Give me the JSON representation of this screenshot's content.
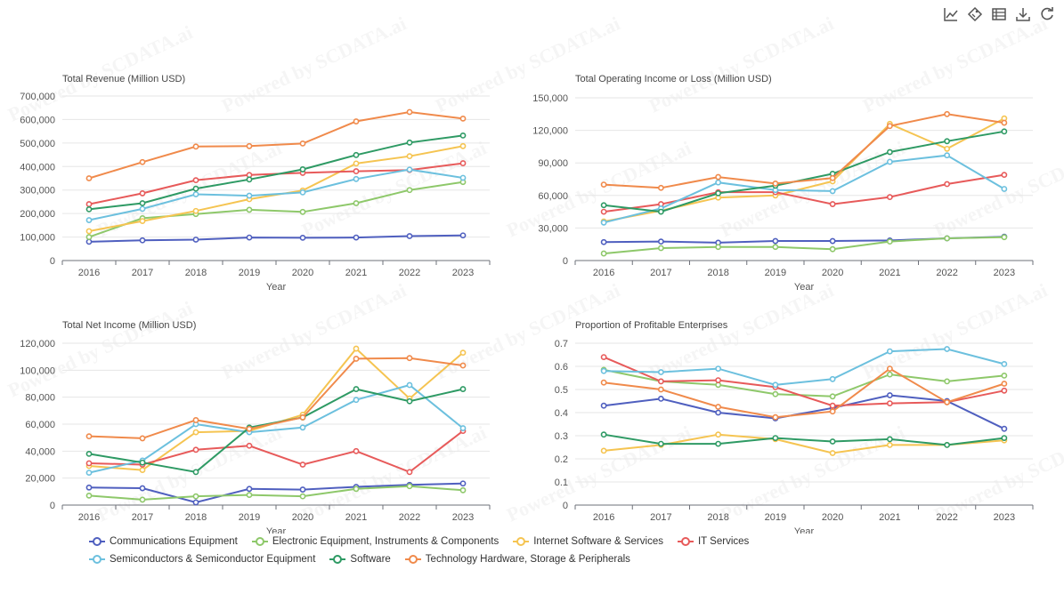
{
  "toolbox": {
    "icons": [
      "line-chart-icon",
      "bar-chart-icon",
      "data-view-icon",
      "download-icon",
      "restore-icon"
    ]
  },
  "watermark_text": "Powered by SCDATA.ai",
  "colors": {
    "Communications Equipment": "#4f5fbf",
    "Electronic Equipment, Instruments & Components": "#8ec86a",
    "Internet Software & Services": "#f5c451",
    "IT Services": "#e75a5a",
    "Semiconductors & Semiconductor Equipment": "#6cc0de",
    "Software": "#2e9a64",
    "Technology Hardware, Storage & Peripherals": "#f08a4b"
  },
  "legend": [
    "Communications Equipment",
    "Electronic Equipment, Instruments & Components",
    "Internet Software & Services",
    "IT Services",
    "Semiconductors & Semiconductor Equipment",
    "Software",
    "Technology Hardware, Storage & Peripherals"
  ],
  "chart_data": [
    {
      "type": "line",
      "title": "Total Revenue (Million USD)",
      "xlabel": "Year",
      "ylabel": "",
      "x": [
        "2016",
        "2017",
        "2018",
        "2019",
        "2020",
        "2021",
        "2022",
        "2023"
      ],
      "ylim": [
        0,
        700000
      ],
      "yticks": [
        0,
        100000,
        200000,
        300000,
        400000,
        500000,
        600000,
        700000
      ],
      "ytick_labels": [
        "0",
        "100,000",
        "200,000",
        "300,000",
        "400,000",
        "500,000",
        "600,000",
        "700,000"
      ],
      "grid": true,
      "series": [
        {
          "name": "Communications Equipment",
          "values": [
            80000,
            86000,
            89000,
            98000,
            97000,
            98000,
            104000,
            107000
          ]
        },
        {
          "name": "Electronic Equipment, Instruments & Components",
          "values": [
            100000,
            180000,
            198000,
            216000,
            207000,
            244000,
            300000,
            334000
          ]
        },
        {
          "name": "Internet Software & Services",
          "values": [
            125000,
            168000,
            211000,
            261000,
            298000,
            413000,
            444000,
            487000
          ]
        },
        {
          "name": "IT Services",
          "values": [
            240000,
            286000,
            342000,
            364000,
            373000,
            380000,
            385000,
            414000
          ]
        },
        {
          "name": "Semiconductors & Semiconductor Equipment",
          "values": [
            172000,
            220000,
            282000,
            276000,
            290000,
            347000,
            387000,
            352000
          ]
        },
        {
          "name": "Software",
          "values": [
            218000,
            244000,
            306000,
            345000,
            388000,
            449000,
            502000,
            532000
          ]
        },
        {
          "name": "Technology Hardware, Storage & Peripherals",
          "values": [
            350000,
            419000,
            485000,
            487000,
            498000,
            592000,
            632000,
            604000
          ]
        }
      ]
    },
    {
      "type": "line",
      "title": "Total Operating Income or Loss (Million USD)",
      "xlabel": "Year",
      "ylabel": "",
      "x": [
        "2016",
        "2017",
        "2018",
        "2019",
        "2020",
        "2021",
        "2022",
        "2023"
      ],
      "ylim": [
        0,
        150000
      ],
      "yticks": [
        0,
        30000,
        60000,
        90000,
        120000,
        150000
      ],
      "ytick_labels": [
        "0",
        "30,000",
        "60,000",
        "90,000",
        "120,000",
        "150,000"
      ],
      "grid": true,
      "series": [
        {
          "name": "Communications Equipment",
          "values": [
            17000,
            17500,
            16500,
            18000,
            18000,
            18500,
            20500,
            22000
          ]
        },
        {
          "name": "Electronic Equipment, Instruments & Components",
          "values": [
            6500,
            11500,
            12500,
            12500,
            10500,
            17500,
            20500,
            21500
          ]
        },
        {
          "name": "Internet Software & Services",
          "values": [
            36000,
            46000,
            58000,
            60000,
            73000,
            126000,
            103000,
            131000
          ]
        },
        {
          "name": "IT Services",
          "values": [
            45000,
            52000,
            63000,
            63000,
            52000,
            58500,
            70500,
            79000
          ]
        },
        {
          "name": "Semiconductors & Semiconductor Equipment",
          "values": [
            35000,
            48000,
            72000,
            65000,
            64000,
            91000,
            97000,
            66000
          ]
        },
        {
          "name": "Software",
          "values": [
            51000,
            45000,
            62000,
            69000,
            80000,
            100000,
            110000,
            119000
          ]
        },
        {
          "name": "Technology Hardware, Storage & Peripherals",
          "values": [
            70000,
            67000,
            77000,
            71000,
            76000,
            124000,
            135000,
            127000
          ]
        }
      ]
    },
    {
      "type": "line",
      "title": "Total Net Income (Million USD)",
      "xlabel": "Year",
      "ylabel": "",
      "x": [
        "2016",
        "2017",
        "2018",
        "2019",
        "2020",
        "2021",
        "2022",
        "2023"
      ],
      "ylim": [
        0,
        120000
      ],
      "yticks": [
        0,
        20000,
        40000,
        60000,
        80000,
        100000,
        120000
      ],
      "ytick_labels": [
        "0",
        "20,000",
        "40,000",
        "60,000",
        "80,000",
        "100,000",
        "120,000"
      ],
      "grid": true,
      "series": [
        {
          "name": "Communications Equipment",
          "values": [
            13000,
            12500,
            2000,
            12000,
            11500,
            13500,
            15000,
            16000
          ]
        },
        {
          "name": "Electronic Equipment, Instruments & Components",
          "values": [
            7000,
            4000,
            6500,
            7500,
            6500,
            12000,
            14000,
            11000
          ]
        },
        {
          "name": "Internet Software & Services",
          "values": [
            29000,
            26000,
            54000,
            55000,
            67000,
            116000,
            79000,
            113000
          ]
        },
        {
          "name": "IT Services",
          "values": [
            31000,
            30000,
            41000,
            44000,
            30000,
            40000,
            24500,
            55000
          ]
        },
        {
          "name": "Semiconductors & Semiconductor Equipment",
          "values": [
            24000,
            33000,
            60000,
            54000,
            57500,
            78000,
            89000,
            57000
          ]
        },
        {
          "name": "Software",
          "values": [
            38000,
            31500,
            24500,
            57500,
            65000,
            86000,
            77000,
            86000
          ]
        },
        {
          "name": "Technology Hardware, Storage & Peripherals",
          "values": [
            51000,
            49500,
            63000,
            56500,
            65000,
            108500,
            109000,
            103500
          ]
        }
      ]
    },
    {
      "type": "line",
      "title": "Proportion of Profitable Enterprises",
      "xlabel": "Year",
      "ylabel": "",
      "x": [
        "2016",
        "2017",
        "2018",
        "2019",
        "2020",
        "2021",
        "2022",
        "2023"
      ],
      "ylim": [
        0,
        0.7
      ],
      "yticks": [
        0,
        0.1,
        0.2,
        0.3,
        0.4,
        0.5,
        0.6,
        0.7
      ],
      "ytick_labels": [
        "0",
        "0.1",
        "0.2",
        "0.3",
        "0.4",
        "0.5",
        "0.6",
        "0.7"
      ],
      "grid": true,
      "series": [
        {
          "name": "Communications Equipment",
          "values": [
            0.43,
            0.46,
            0.4,
            0.375,
            0.42,
            0.475,
            0.45,
            0.33
          ]
        },
        {
          "name": "Electronic Equipment, Instruments & Components",
          "values": [
            0.585,
            0.535,
            0.52,
            0.48,
            0.47,
            0.565,
            0.535,
            0.56
          ]
        },
        {
          "name": "Internet Software & Services",
          "values": [
            0.235,
            0.26,
            0.305,
            0.285,
            0.225,
            0.26,
            0.26,
            0.28
          ]
        },
        {
          "name": "IT Services",
          "values": [
            0.64,
            0.535,
            0.54,
            0.51,
            0.43,
            0.44,
            0.445,
            0.495
          ]
        },
        {
          "name": "Semiconductors & Semiconductor Equipment",
          "values": [
            0.58,
            0.575,
            0.59,
            0.52,
            0.545,
            0.665,
            0.675,
            0.61
          ]
        },
        {
          "name": "Software",
          "values": [
            0.305,
            0.265,
            0.265,
            0.29,
            0.275,
            0.285,
            0.26,
            0.29
          ]
        },
        {
          "name": "Technology Hardware, Storage & Peripherals",
          "values": [
            0.53,
            0.5,
            0.425,
            0.38,
            0.405,
            0.59,
            0.445,
            0.525
          ]
        }
      ]
    }
  ]
}
